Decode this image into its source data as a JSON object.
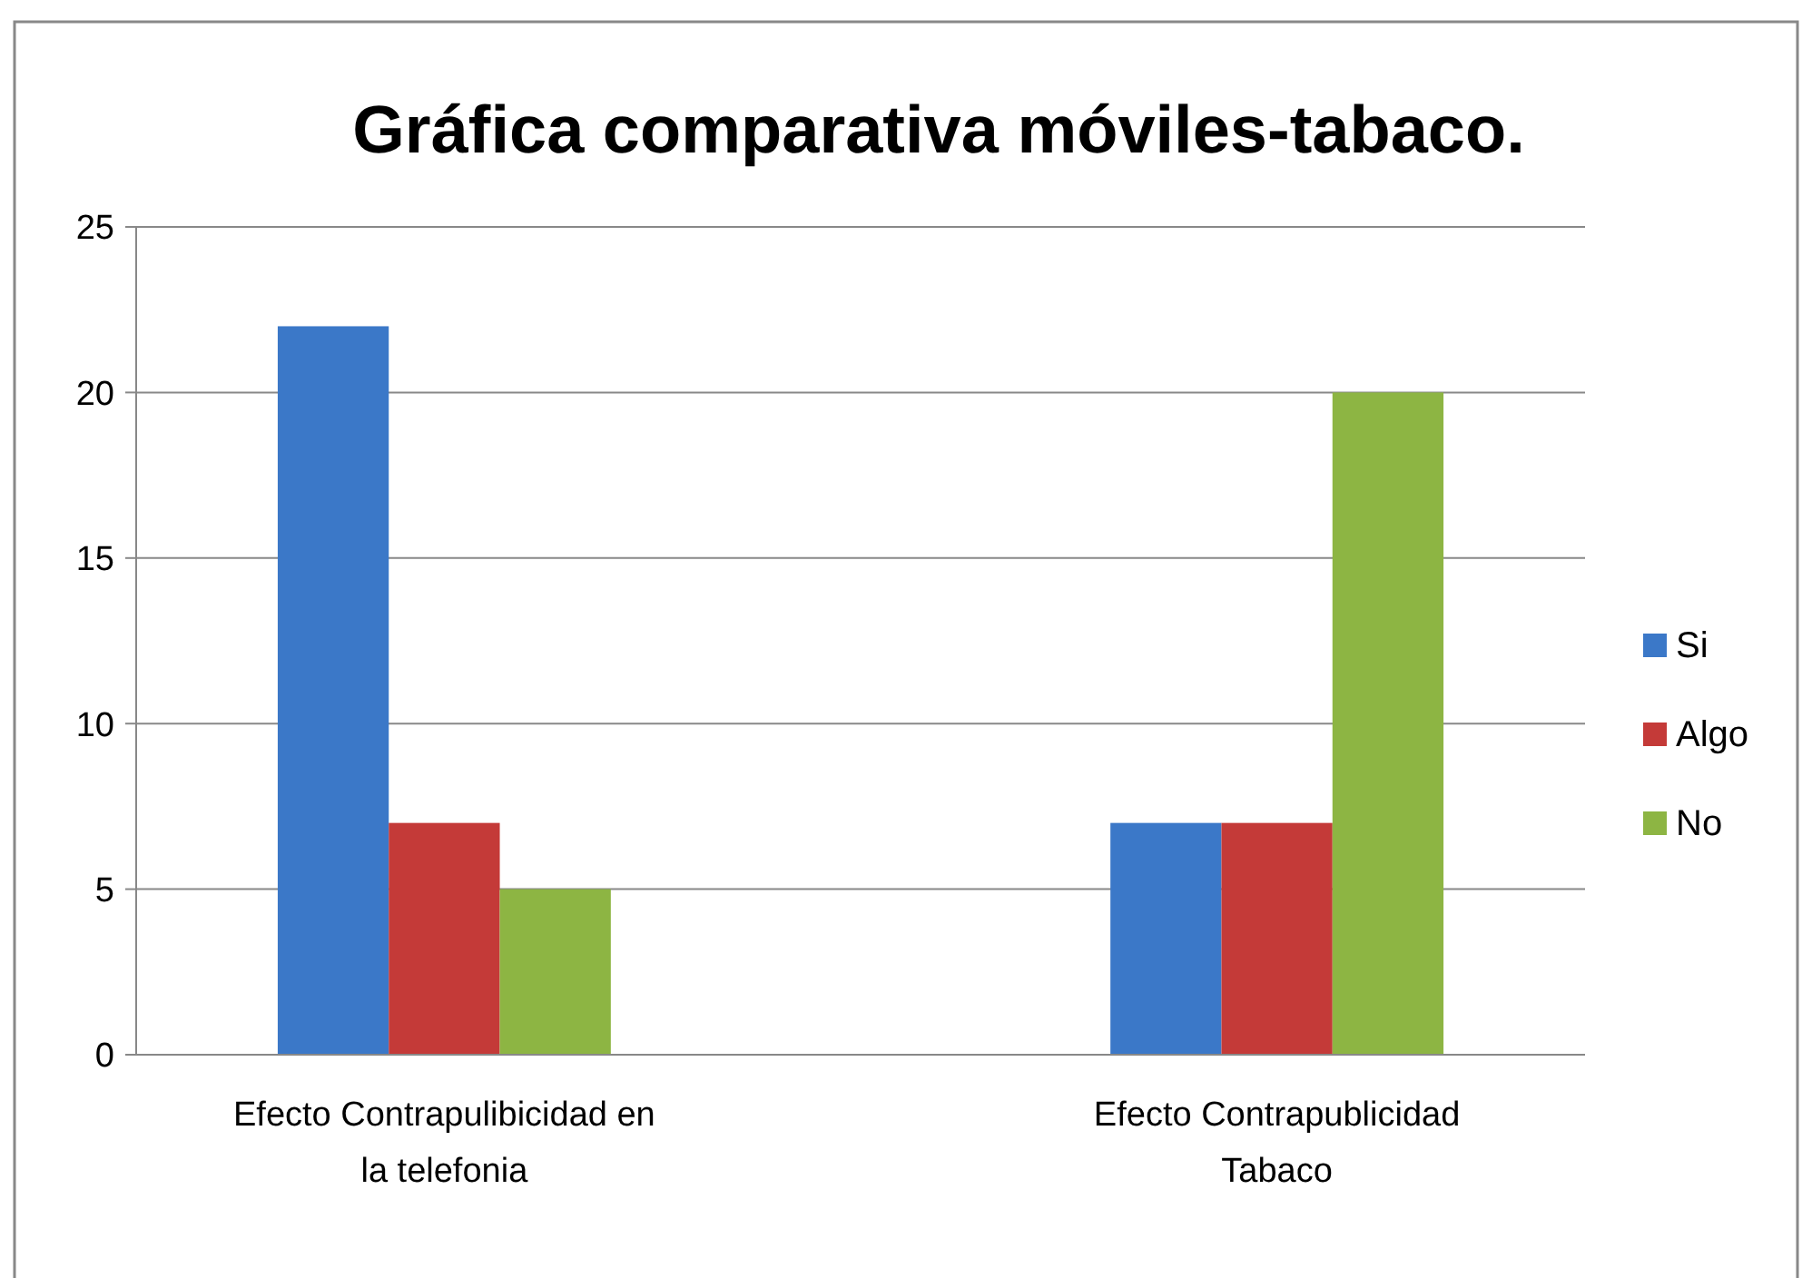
{
  "chart_data": {
    "type": "bar",
    "title": "Gráfica comparativa móviles-tabaco.",
    "categories": [
      "Efecto Contrapulibicidad en la telefonia",
      "Efecto Contrapublicidad Tabaco"
    ],
    "series": [
      {
        "name": "Si",
        "color": "#3b78c8",
        "values": [
          22,
          7
        ]
      },
      {
        "name": "Algo",
        "color": "#c43a38",
        "values": [
          7,
          7
        ]
      },
      {
        "name": "No",
        "color": "#8db543",
        "values": [
          5,
          20
        ]
      }
    ],
    "ylim": [
      0,
      25
    ],
    "yticks": [
      0,
      5,
      10,
      15,
      20,
      25
    ],
    "grid": "y",
    "legend": "right"
  }
}
